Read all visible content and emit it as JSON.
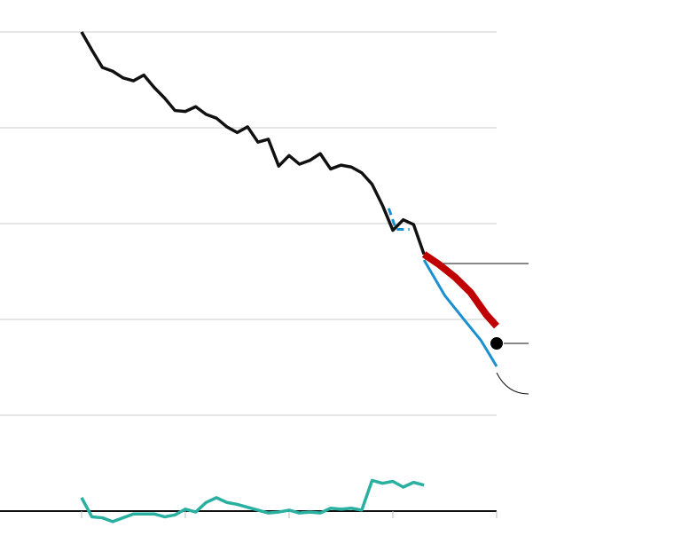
{
  "chart_data": {
    "type": "line",
    "xlim": [
      -0.786,
      4.0
    ],
    "xticks": [
      0,
      1,
      2,
      3,
      4
    ],
    "ylim": [
      -0.3,
      5.2
    ],
    "yticks": [
      0,
      1,
      2,
      3,
      4,
      5
    ],
    "grid": true,
    "series": [
      {
        "color": "#111111",
        "line_width": 3.5,
        "x": [
          0,
          0.1,
          0.2,
          0.3,
          0.4,
          0.5,
          0.6,
          0.7,
          0.8,
          0.9,
          1.0,
          1.1,
          1.2,
          1.3,
          1.4,
          1.5,
          1.6,
          1.7,
          1.8,
          1.9,
          2.0,
          2.1,
          2.2,
          2.3,
          2.4,
          2.5,
          2.6,
          2.7,
          2.8,
          2.9,
          3.0,
          3.1,
          3.2,
          3.3
        ],
        "values": [
          5.0,
          4.81,
          4.63,
          4.59,
          4.52,
          4.49,
          4.55,
          4.42,
          4.31,
          4.18,
          4.17,
          4.22,
          4.14,
          4.1,
          4.01,
          3.95,
          4.01,
          3.85,
          3.88,
          3.6,
          3.71,
          3.62,
          3.66,
          3.73,
          3.57,
          3.61,
          3.59,
          3.53,
          3.41,
          3.19,
          2.93,
          3.04,
          2.99,
          2.68
        ]
      },
      {
        "color": "#2ab0a0",
        "line_width": 3.5,
        "x": [
          0,
          0.1,
          0.2,
          0.3,
          0.4,
          0.5,
          0.6,
          0.7,
          0.8,
          0.9,
          1.0,
          1.1,
          1.2,
          1.3,
          1.4,
          1.5,
          1.6,
          1.7,
          1.8,
          1.9,
          2.0,
          2.1,
          2.2,
          2.3,
          2.4,
          2.5,
          2.6,
          2.7,
          2.8,
          2.9,
          3.0,
          3.1,
          3.2,
          3.3
        ],
        "values": [
          0.14,
          -0.06,
          -0.07,
          -0.11,
          -0.07,
          -0.03,
          -0.03,
          -0.03,
          -0.06,
          -0.04,
          0.02,
          -0.01,
          0.09,
          0.14,
          0.09,
          0.07,
          0.04,
          0.01,
          -0.02,
          -0.01,
          0.01,
          -0.02,
          -0.01,
          -0.02,
          0.03,
          0.02,
          0.03,
          0.01,
          0.32,
          0.29,
          0.31,
          0.25,
          0.3,
          0.27
        ]
      },
      {
        "color": "#1a90d0",
        "line_width": 3,
        "dashed": true,
        "x": [
          2.96,
          3.03,
          3.16
        ],
        "values": [
          3.16,
          2.94,
          2.94
        ]
      },
      {
        "color": "#1a90d0",
        "line_width": 3,
        "x": [
          3.3,
          3.5,
          3.7,
          3.85,
          4.0
        ],
        "values": [
          2.62,
          2.25,
          1.98,
          1.78,
          1.51
        ]
      },
      {
        "color": "#c00000",
        "line_width": 8,
        "x": [
          3.3,
          3.45,
          3.6,
          3.75,
          3.9,
          4.0
        ],
        "values": [
          2.68,
          2.57,
          2.44,
          2.28,
          2.05,
          1.93
        ]
      },
      {
        "color": "#000000",
        "marker": "dot",
        "x": [
          4.0
        ],
        "values": [
          1.75
        ]
      }
    ]
  }
}
